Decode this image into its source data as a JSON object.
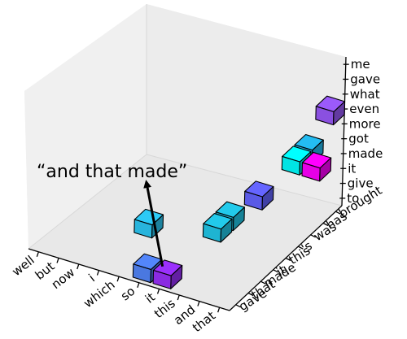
{
  "chart_data": {
    "type": "scatter",
    "subtype": "3d-voxel",
    "title": "",
    "x_ticks": [
      "well",
      "but",
      "now",
      "i",
      "which",
      "so",
      "it",
      "this",
      "and",
      "that"
    ],
    "y_ticks": [
      "gave",
      "that",
      "made",
      "it",
      "this",
      "'s",
      "was",
      "has",
      "brought"
    ],
    "z_ticks": [
      "to",
      "give",
      "it",
      "made",
      "got",
      "more",
      "even",
      "what",
      "gave",
      "me"
    ],
    "points": [
      {
        "x": "it",
        "y": "gave",
        "z": "to",
        "color": "#8a2be2",
        "highlight": true
      },
      {
        "x": "it",
        "y": "this",
        "z": "to",
        "color": "#1eb4d2"
      },
      {
        "x": "it",
        "y": "'s",
        "z": "to",
        "color": "#1eb4d2"
      },
      {
        "x": "so",
        "y": "gave",
        "z": "to",
        "color": "#4a78e0"
      },
      {
        "x": "so",
        "y": "gave",
        "z": "made",
        "color": "#28b4dc"
      },
      {
        "x": "and",
        "y": "this",
        "z": "made",
        "color": "#5a5ae6"
      },
      {
        "x": "and",
        "y": "has",
        "z": "made",
        "color": "#00e4e4"
      },
      {
        "x": "and",
        "y": "brought",
        "z": "made",
        "color": "#20a8d8"
      },
      {
        "x": "that",
        "y": "has",
        "z": "made",
        "color": "#e600e6"
      },
      {
        "x": "that",
        "y": "brought",
        "z": "even",
        "color": "#8a50e0"
      }
    ],
    "annotation": {
      "text": "“and that made”",
      "arrow_from_point": 0
    },
    "grid": false
  }
}
